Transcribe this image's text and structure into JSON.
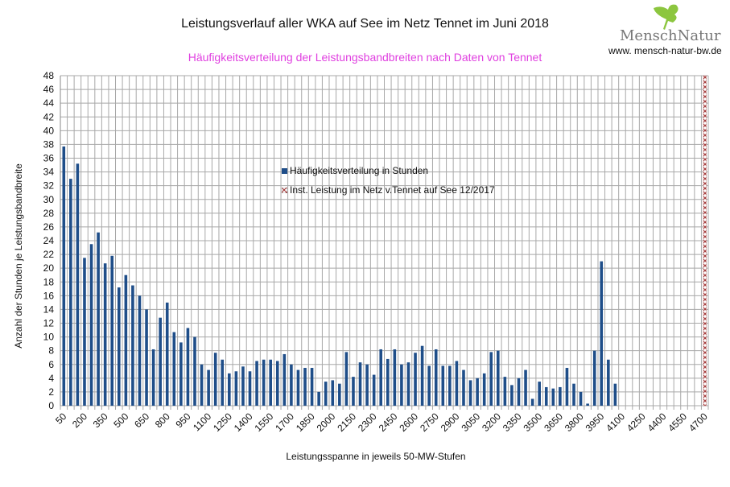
{
  "header": {
    "title": "Leistungsverlauf aller WKA auf See im Netz Tennet im Juni 2018",
    "subtitle": "Häufigkeitsverteilung der Leistungsbandbreiten nach Daten von Tennet"
  },
  "logo": {
    "name": "MenschNatur",
    "url_text": "www. mensch-natur-bw.de",
    "leaf_color": "#8cc63f"
  },
  "chart_data": {
    "type": "bar",
    "title": "Leistungsverlauf aller WKA auf See im Netz Tennet im Juni 2018",
    "subtitle": "Häufigkeitsverteilung der Leistungsbandbreiten nach Daten von Tennet",
    "xlabel": "Leistungsspanne in jeweils 50-MW-Stufen",
    "ylabel": "Anzahl der Stunden je Leistungsbandbreite",
    "ylim": [
      0,
      48
    ],
    "ytick_step": 2,
    "grid": true,
    "x_label_every": 3,
    "legend_placement": "center",
    "categories": [
      50,
      100,
      150,
      200,
      250,
      300,
      350,
      400,
      450,
      500,
      550,
      600,
      650,
      700,
      750,
      800,
      850,
      900,
      950,
      1000,
      1050,
      1100,
      1150,
      1200,
      1250,
      1300,
      1350,
      1400,
      1450,
      1500,
      1550,
      1600,
      1650,
      1700,
      1750,
      1800,
      1850,
      1900,
      1950,
      2000,
      2050,
      2100,
      2150,
      2200,
      2250,
      2300,
      2350,
      2400,
      2450,
      2500,
      2550,
      2600,
      2650,
      2700,
      2750,
      2800,
      2850,
      2900,
      2950,
      3000,
      3050,
      3100,
      3150,
      3200,
      3250,
      3300,
      3350,
      3400,
      3450,
      3500,
      3550,
      3600,
      3650,
      3700,
      3750,
      3800,
      3850,
      3900,
      3950,
      4000,
      4050,
      4100,
      4150,
      4200,
      4250,
      4300,
      4350,
      4400,
      4450,
      4500,
      4550,
      4600,
      4650,
      4700
    ],
    "series": [
      {
        "name": "Häufigkeitsverteilung in Stunden",
        "color": "#1f4e89",
        "values": [
          37.7,
          33,
          35.2,
          21.5,
          23.5,
          25.2,
          20.7,
          21.8,
          17.2,
          19,
          17.5,
          16,
          14,
          8.2,
          12.8,
          15,
          10.7,
          9.2,
          11.3,
          10,
          6,
          5.2,
          7.7,
          6.7,
          4.7,
          5,
          5.7,
          5,
          6.5,
          6.7,
          6.7,
          6.5,
          7.5,
          6,
          5.2,
          5.5,
          5.5,
          2,
          3.5,
          3.7,
          3.2,
          7.8,
          4.2,
          6.3,
          6,
          4.5,
          8.2,
          6.8,
          8.2,
          6,
          6.3,
          7.7,
          8.7,
          5.8,
          8.2,
          5.8,
          5.8,
          6.5,
          5.2,
          3.7,
          4,
          4.7,
          7.8,
          8,
          4.2,
          3,
          4,
          5.2,
          1,
          3.5,
          2.7,
          2.5,
          2.7,
          5.5,
          3.2,
          2,
          0.3,
          8,
          21,
          6.7,
          3.2,
          0,
          0,
          0,
          0,
          0,
          0,
          0,
          0,
          0,
          0,
          0,
          0,
          0
        ]
      },
      {
        "name": "Inst. Leistung im Netz v.Tennet auf See 12/2017",
        "color": "#c04040",
        "pattern": "hatched",
        "values": [
          0,
          0,
          0,
          0,
          0,
          0,
          0,
          0,
          0,
          0,
          0,
          0,
          0,
          0,
          0,
          0,
          0,
          0,
          0,
          0,
          0,
          0,
          0,
          0,
          0,
          0,
          0,
          0,
          0,
          0,
          0,
          0,
          0,
          0,
          0,
          0,
          0,
          0,
          0,
          0,
          0,
          0,
          0,
          0,
          0,
          0,
          0,
          0,
          0,
          0,
          0,
          0,
          0,
          0,
          0,
          0,
          0,
          0,
          0,
          0,
          0,
          0,
          0,
          0,
          0,
          0,
          0,
          0,
          0,
          0,
          0,
          0,
          0,
          0,
          0,
          0,
          0,
          0,
          0,
          0,
          0,
          0,
          0,
          0,
          0,
          0,
          0,
          0,
          0,
          0,
          0,
          0,
          0,
          48
        ]
      }
    ]
  }
}
